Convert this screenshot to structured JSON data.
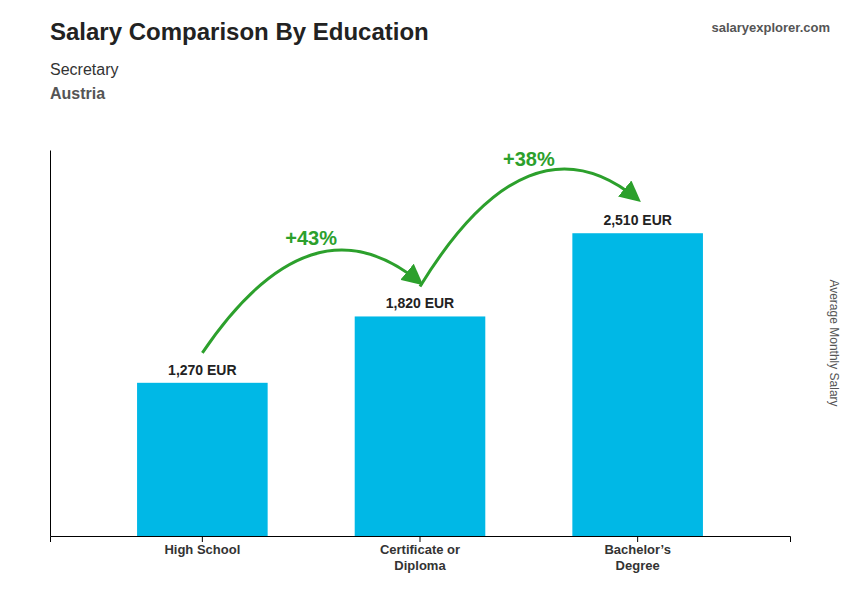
{
  "chart_data": {
    "type": "bar",
    "title": "Salary Comparison By Education",
    "subtitle": [
      "Secretary",
      "Austria"
    ],
    "ylabel": "Average Monthly Salary",
    "categories": [
      "High School",
      "Certificate or\nDiploma",
      "Bachelor’s\nDegree"
    ],
    "values": [
      1270,
      1820,
      2510
    ],
    "value_labels": [
      "1,270 EUR",
      "1,820 EUR",
      "2,510 EUR"
    ],
    "data_labels": true,
    "color": "#00b8e6",
    "ylim": [
      0,
      3200
    ],
    "tick_labels": "x",
    "grid": false,
    "annotations": [
      "+43%",
      "+38%",
      "salaryexplorer.com"
    ]
  }
}
